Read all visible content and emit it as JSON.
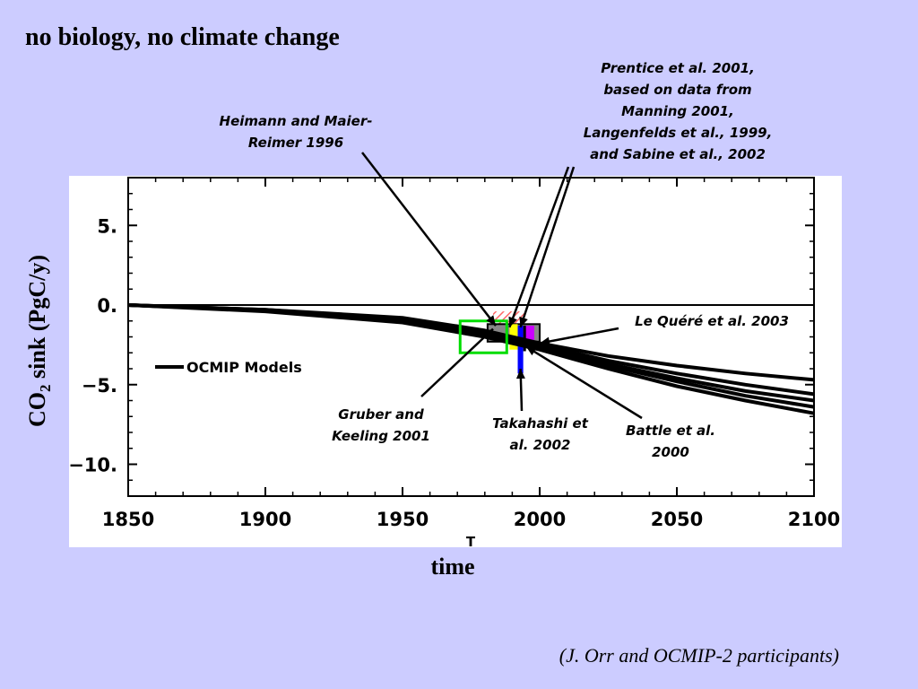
{
  "slide": {
    "title": "no biology, no climate change",
    "credit": "(J. Orr and OCMIP-2 participants)"
  },
  "chart_data": {
    "type": "line",
    "title": "",
    "xlabel": "time",
    "ylabel_main": "CO",
    "ylabel_sub": "2",
    "ylabel_rest": " sink (PgC/y)",
    "xlim": [
      1850,
      2100
    ],
    "ylim": [
      -12,
      8
    ],
    "x_ticks": [
      1850,
      1900,
      1950,
      2000,
      2050,
      2100
    ],
    "x_tick_labels": [
      "1850",
      "1900",
      "1950",
      "2000",
      "2050",
      "2100"
    ],
    "y_ticks": [
      5,
      0,
      -5,
      -10
    ],
    "y_tick_labels": [
      "5.",
      "0.",
      "−5.",
      "−10."
    ],
    "x_axis_marker": "T",
    "zero_line": 0,
    "grid": false,
    "legend": [
      {
        "label": "OCMIP Models",
        "placement": "left"
      }
    ],
    "series": [
      {
        "name": "OCMIP Models",
        "color": "#000000",
        "x": [
          1850,
          1900,
          1950,
          1980,
          2000,
          2025,
          2050,
          2075,
          2100
        ],
        "y": [
          0,
          -0.3,
          -0.8,
          -1.6,
          -2.4,
          -3.2,
          -3.8,
          -4.3,
          -4.7
        ]
      },
      {
        "x": [
          1850,
          1900,
          1950,
          1980,
          2000,
          2025,
          2050,
          2075,
          2100
        ],
        "y": [
          0,
          -0.3,
          -0.9,
          -1.7,
          -2.5,
          -3.5,
          -4.3,
          -5.0,
          -5.6
        ]
      },
      {
        "x": [
          1850,
          1900,
          1950,
          1980,
          2000,
          2025,
          2050,
          2075,
          2100
        ],
        "y": [
          0,
          -0.35,
          -1.0,
          -1.8,
          -2.6,
          -3.7,
          -4.6,
          -5.4,
          -6.0
        ]
      },
      {
        "x": [
          1850,
          1900,
          1950,
          1980,
          2000,
          2025,
          2050,
          2075,
          2100
        ],
        "y": [
          0,
          -0.35,
          -1.0,
          -1.9,
          -2.7,
          -3.8,
          -4.8,
          -5.7,
          -6.4
        ]
      },
      {
        "x": [
          1850,
          1900,
          1950,
          1980,
          2000,
          2025,
          2050,
          2075,
          2100
        ],
        "y": [
          0,
          -0.4,
          -1.1,
          -2.0,
          -2.8,
          -4.0,
          -5.1,
          -6.0,
          -6.8
        ]
      }
    ],
    "observation_boxes": [
      {
        "label_ref": "gruber",
        "kind": "outline",
        "color": "#00dd00",
        "x": [
          1971,
          1988
        ],
        "y": [
          -3.0,
          -1.0
        ]
      },
      {
        "label_ref": "heimann",
        "kind": "hatched",
        "color": "#ff6666",
        "x": [
          1983,
          1995
        ],
        "y": [
          -1.2,
          -0.4
        ]
      },
      {
        "label_ref": "prentice",
        "kind": "filled",
        "color": "#888888",
        "x": [
          1981,
          2000
        ],
        "y": [
          -2.3,
          -1.2
        ]
      },
      {
        "label_ref": "takahashi",
        "kind": "filled",
        "color": "#ffff00",
        "x": [
          1989,
          1992
        ],
        "y": [
          -2.8,
          -1.2
        ]
      },
      {
        "label_ref": "takahashi-blue",
        "kind": "filled",
        "color": "#0000ff",
        "x": [
          1992,
          1994
        ],
        "y": [
          -4.3,
          -1.3
        ]
      },
      {
        "label_ref": "lequere",
        "kind": "filled",
        "color": "#cc00ff",
        "x": [
          1994,
          1998
        ],
        "y": [
          -2.5,
          -1.3
        ]
      },
      {
        "label_ref": "battle",
        "kind": "filled",
        "color": "#000000",
        "x": [
          1994,
          1995
        ],
        "y": [
          -2.9,
          -1.3
        ]
      }
    ],
    "annotations": [
      {
        "id": "heimann",
        "text": "Heimann and Maier-\nReimer 1996",
        "target": [
          1984,
          -1.3
        ]
      },
      {
        "id": "prentice",
        "text": "Prentice et al. 2001,\nbased on data from\nManning 2001,\nLangenfelds et al., 1999,\nand Sabine et al., 2002",
        "target": [
          1993,
          -1.4
        ],
        "target2": [
          1989,
          -1.4
        ]
      },
      {
        "id": "lequere",
        "text": "Le Quéré et al. 2003",
        "target": [
          2000,
          -2.4
        ]
      },
      {
        "id": "gruber",
        "text": "Gruber and\nKeeling 2001",
        "target": [
          1983,
          -1.5
        ]
      },
      {
        "id": "takahashi",
        "text": "Takahashi et\nal. 2002",
        "target": [
          1993,
          -4.0
        ]
      },
      {
        "id": "battle",
        "text": "Battle et al.\n2000",
        "target": [
          1995,
          -2.6
        ]
      }
    ]
  }
}
